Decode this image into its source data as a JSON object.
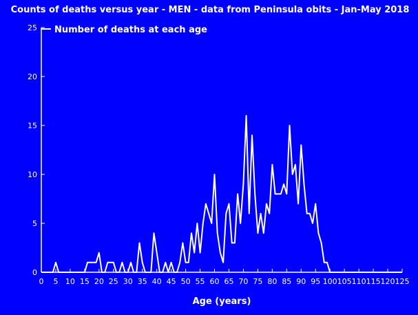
{
  "chart_data": {
    "type": "line",
    "title": "Counts of deaths versus year - MEN - data from Peninsula obits - Jan-May 2018",
    "xlabel": "Age (years)",
    "ylabel": "",
    "legend": "Number of deaths at each age",
    "xlim": [
      0,
      125
    ],
    "ylim": [
      0,
      25
    ],
    "xticks": [
      0,
      5,
      10,
      15,
      20,
      25,
      30,
      35,
      40,
      45,
      50,
      55,
      60,
      65,
      70,
      75,
      80,
      85,
      90,
      95,
      100,
      105,
      110,
      115,
      120,
      125
    ],
    "yticks": [
      0,
      5,
      10,
      15,
      20,
      25
    ],
    "grid": false,
    "colors": {
      "background": "#0000ff",
      "line": "#ffffff"
    },
    "series": [
      {
        "x": [
          0,
          1,
          2,
          3,
          4,
          5,
          6,
          7,
          8,
          9,
          10,
          11,
          12,
          13,
          14,
          15,
          16,
          17,
          18,
          19,
          20,
          21,
          22,
          23,
          24,
          25,
          26,
          27,
          28,
          29,
          30,
          31,
          32,
          33,
          34,
          35,
          36,
          37,
          38,
          39,
          40,
          41,
          42,
          43,
          44,
          45,
          46,
          47,
          48,
          49,
          50,
          51,
          52,
          53,
          54,
          55,
          56,
          57,
          58,
          59,
          60,
          61,
          62,
          63,
          64,
          65,
          66,
          67,
          68,
          69,
          70,
          71,
          72,
          73,
          74,
          75,
          76,
          77,
          78,
          79,
          80,
          81,
          82,
          83,
          84,
          85,
          86,
          87,
          88,
          89,
          90,
          91,
          92,
          93,
          94,
          95,
          96,
          97,
          98,
          99,
          100,
          101,
          102,
          103,
          104,
          105,
          106,
          107,
          108,
          109,
          110,
          111,
          112,
          113,
          114,
          115,
          116,
          117,
          118,
          119,
          120,
          121,
          122,
          123,
          124,
          125
        ],
        "y": [
          0,
          0,
          0,
          0,
          0,
          1,
          0,
          0,
          0,
          0,
          0,
          0,
          0,
          0,
          0,
          0,
          1,
          1,
          1,
          1,
          2,
          0,
          0,
          1,
          1,
          1,
          0,
          0,
          1,
          0,
          0,
          1,
          0,
          0,
          3,
          1,
          0,
          0,
          0,
          4,
          2,
          0,
          0,
          1,
          0,
          1,
          0,
          0,
          1,
          3,
          1,
          1,
          4,
          2,
          5,
          2,
          5,
          7,
          6,
          5,
          10,
          4,
          2,
          1,
          6,
          7,
          3,
          3,
          8,
          5,
          9,
          16,
          6,
          14,
          8,
          4,
          6,
          4,
          7,
          6,
          11,
          8,
          8,
          8,
          9,
          8,
          15,
          10,
          11,
          7,
          13,
          9,
          6,
          6,
          5,
          7,
          4,
          3,
          1,
          1,
          0,
          0,
          0,
          0,
          0,
          0,
          0,
          0,
          0,
          0,
          0,
          0,
          0,
          0,
          0,
          0,
          0,
          0,
          0,
          0,
          0,
          0,
          0,
          0,
          0,
          0
        ]
      }
    ]
  }
}
